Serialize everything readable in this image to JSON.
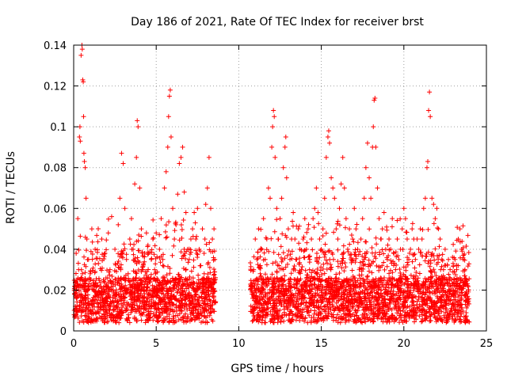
{
  "chart_data": {
    "type": "scatter",
    "title": "Day 186 of 2021, Rate Of TEC Index for receiver brst",
    "xlabel": "GPS time / hours",
    "ylabel": "ROTI / TECUs",
    "xlim": [
      0,
      25
    ],
    "ylim": [
      0,
      0.14
    ],
    "x_ticks": [
      "0",
      "5",
      "10",
      "15",
      "20",
      "25"
    ],
    "y_ticks": [
      "0",
      "0.02",
      "0.04",
      "0.06",
      "0.08",
      "0.1",
      "0.12",
      "0.14"
    ],
    "grid": true,
    "marker": "+",
    "color": "#ff0000",
    "data_gap": [
      8.6,
      10.7
    ],
    "series": [
      {
        "points": [
          [
            0.05,
            0.018
          ],
          [
            0.1,
            0.012
          ],
          [
            0.15,
            0.038
          ],
          [
            0.2,
            0.025
          ],
          [
            0.25,
            0.055
          ],
          [
            0.3,
            0.03
          ],
          [
            0.35,
            0.095
          ],
          [
            0.38,
            0.1
          ],
          [
            0.4,
            0.093
          ],
          [
            0.45,
            0.135
          ],
          [
            0.5,
            0.14
          ],
          [
            0.52,
            0.138
          ],
          [
            0.55,
            0.123
          ],
          [
            0.58,
            0.122
          ],
          [
            0.6,
            0.105
          ],
          [
            0.62,
            0.087
          ],
          [
            0.65,
            0.083
          ],
          [
            0.7,
            0.08
          ],
          [
            0.75,
            0.065
          ],
          [
            0.8,
            0.045
          ],
          [
            0.9,
            0.035
          ],
          [
            1.0,
            0.028
          ],
          [
            1.1,
            0.05
          ],
          [
            1.2,
            0.022
          ],
          [
            1.3,
            0.04
          ],
          [
            1.4,
            0.018
          ],
          [
            1.5,
            0.033
          ],
          [
            1.6,
            0.015
          ],
          [
            1.7,
            0.045
          ],
          [
            1.8,
            0.025
          ],
          [
            1.9,
            0.038
          ],
          [
            2.0,
            0.02
          ],
          [
            2.1,
            0.048
          ],
          [
            2.2,
            0.03
          ],
          [
            2.3,
            0.056
          ],
          [
            2.4,
            0.024
          ],
          [
            2.5,
            0.04
          ],
          [
            2.6,
            0.018
          ],
          [
            2.7,
            0.052
          ],
          [
            2.8,
            0.065
          ],
          [
            2.9,
            0.087
          ],
          [
            3.0,
            0.082
          ],
          [
            3.1,
            0.06
          ],
          [
            3.2,
            0.035
          ],
          [
            3.3,
            0.028
          ],
          [
            3.4,
            0.045
          ],
          [
            3.5,
            0.055
          ],
          [
            3.6,
            0.04
          ],
          [
            3.7,
            0.072
          ],
          [
            3.8,
            0.085
          ],
          [
            3.85,
            0.103
          ],
          [
            3.9,
            0.1
          ],
          [
            4.0,
            0.07
          ],
          [
            4.1,
            0.05
          ],
          [
            4.2,
            0.03
          ],
          [
            4.3,
            0.038
          ],
          [
            4.4,
            0.025
          ],
          [
            4.5,
            0.042
          ],
          [
            4.6,
            0.02
          ],
          [
            4.7,
            0.035
          ],
          [
            4.8,
            0.045
          ],
          [
            4.9,
            0.03
          ],
          [
            5.0,
            0.048
          ],
          [
            5.1,
            0.025
          ],
          [
            5.2,
            0.04
          ],
          [
            5.3,
            0.055
          ],
          [
            5.4,
            0.035
          ],
          [
            5.5,
            0.07
          ],
          [
            5.6,
            0.078
          ],
          [
            5.7,
            0.09
          ],
          [
            5.75,
            0.105
          ],
          [
            5.8,
            0.115
          ],
          [
            5.85,
            0.118
          ],
          [
            5.9,
            0.095
          ],
          [
            6.0,
            0.06
          ],
          [
            6.1,
            0.045
          ],
          [
            6.2,
            0.052
          ],
          [
            6.3,
            0.067
          ],
          [
            6.4,
            0.082
          ],
          [
            6.5,
            0.085
          ],
          [
            6.6,
            0.09
          ],
          [
            6.7,
            0.068
          ],
          [
            6.8,
            0.058
          ],
          [
            6.9,
            0.04
          ],
          [
            7.0,
            0.035
          ],
          [
            7.1,
            0.045
          ],
          [
            7.2,
            0.05
          ],
          [
            7.3,
            0.058
          ],
          [
            7.4,
            0.045
          ],
          [
            7.5,
            0.06
          ],
          [
            7.6,
            0.04
          ],
          [
            7.7,
            0.032
          ],
          [
            7.8,
            0.05
          ],
          [
            7.9,
            0.038
          ],
          [
            8.0,
            0.062
          ],
          [
            8.1,
            0.07
          ],
          [
            8.2,
            0.085
          ],
          [
            8.3,
            0.06
          ],
          [
            8.4,
            0.045
          ],
          [
            8.5,
            0.05
          ],
          [
            8.55,
            0.035
          ],
          [
            10.8,
            0.018
          ],
          [
            10.9,
            0.03
          ],
          [
            11.0,
            0.045
          ],
          [
            11.1,
            0.035
          ],
          [
            11.2,
            0.05
          ],
          [
            11.3,
            0.028
          ],
          [
            11.4,
            0.04
          ],
          [
            11.5,
            0.055
          ],
          [
            11.6,
            0.035
          ],
          [
            11.7,
            0.045
          ],
          [
            11.8,
            0.07
          ],
          [
            11.9,
            0.065
          ],
          [
            12.0,
            0.09
          ],
          [
            12.05,
            0.1
          ],
          [
            12.1,
            0.108
          ],
          [
            12.15,
            0.105
          ],
          [
            12.2,
            0.085
          ],
          [
            12.3,
            0.06
          ],
          [
            12.4,
            0.045
          ],
          [
            12.5,
            0.055
          ],
          [
            12.6,
            0.065
          ],
          [
            12.7,
            0.08
          ],
          [
            12.8,
            0.09
          ],
          [
            12.85,
            0.095
          ],
          [
            12.9,
            0.075
          ],
          [
            13.0,
            0.05
          ],
          [
            13.1,
            0.035
          ],
          [
            13.2,
            0.045
          ],
          [
            13.3,
            0.058
          ],
          [
            13.4,
            0.045
          ],
          [
            13.5,
            0.035
          ],
          [
            13.6,
            0.05
          ],
          [
            13.7,
            0.04
          ],
          [
            13.8,
            0.03
          ],
          [
            13.9,
            0.045
          ],
          [
            14.0,
            0.055
          ],
          [
            14.1,
            0.04
          ],
          [
            14.2,
            0.05
          ],
          [
            14.3,
            0.035
          ],
          [
            14.4,
            0.045
          ],
          [
            14.5,
            0.055
          ],
          [
            14.6,
            0.06
          ],
          [
            14.7,
            0.07
          ],
          [
            14.8,
            0.058
          ],
          [
            14.9,
            0.045
          ],
          [
            15.0,
            0.04
          ],
          [
            15.1,
            0.05
          ],
          [
            15.2,
            0.065
          ],
          [
            15.3,
            0.085
          ],
          [
            15.4,
            0.095
          ],
          [
            15.45,
            0.098
          ],
          [
            15.5,
            0.092
          ],
          [
            15.6,
            0.075
          ],
          [
            15.7,
            0.07
          ],
          [
            15.8,
            0.065
          ],
          [
            15.9,
            0.05
          ],
          [
            16.0,
            0.045
          ],
          [
            16.1,
            0.06
          ],
          [
            16.2,
            0.072
          ],
          [
            16.3,
            0.085
          ],
          [
            16.4,
            0.07
          ],
          [
            16.5,
            0.055
          ],
          [
            16.6,
            0.04
          ],
          [
            16.7,
            0.05
          ],
          [
            16.8,
            0.035
          ],
          [
            16.9,
            0.045
          ],
          [
            17.0,
            0.06
          ],
          [
            17.1,
            0.05
          ],
          [
            17.2,
            0.04
          ],
          [
            17.3,
            0.03
          ],
          [
            17.4,
            0.045
          ],
          [
            17.5,
            0.055
          ],
          [
            17.6,
            0.065
          ],
          [
            17.7,
            0.08
          ],
          [
            17.8,
            0.092
          ],
          [
            17.9,
            0.075
          ],
          [
            18.0,
            0.065
          ],
          [
            18.1,
            0.09
          ],
          [
            18.15,
            0.1
          ],
          [
            18.2,
            0.113
          ],
          [
            18.25,
            0.114
          ],
          [
            18.3,
            0.09
          ],
          [
            18.4,
            0.07
          ],
          [
            18.5,
            0.055
          ],
          [
            18.6,
            0.045
          ],
          [
            18.7,
            0.05
          ],
          [
            18.8,
            0.058
          ],
          [
            18.9,
            0.04
          ],
          [
            19.0,
            0.035
          ],
          [
            19.1,
            0.045
          ],
          [
            19.2,
            0.04
          ],
          [
            19.3,
            0.055
          ],
          [
            19.4,
            0.038
          ],
          [
            19.5,
            0.03
          ],
          [
            19.6,
            0.045
          ],
          [
            19.7,
            0.035
          ],
          [
            19.8,
            0.04
          ],
          [
            19.9,
            0.05
          ],
          [
            20.0,
            0.06
          ],
          [
            20.1,
            0.055
          ],
          [
            20.2,
            0.045
          ],
          [
            20.3,
            0.035
          ],
          [
            20.4,
            0.04
          ],
          [
            20.5,
            0.05
          ],
          [
            20.6,
            0.045
          ],
          [
            20.7,
            0.035
          ],
          [
            20.8,
            0.045
          ],
          [
            20.9,
            0.04
          ],
          [
            21.0,
            0.05
          ],
          [
            21.1,
            0.045
          ],
          [
            21.2,
            0.06
          ],
          [
            21.3,
            0.065
          ],
          [
            21.4,
            0.08
          ],
          [
            21.45,
            0.083
          ],
          [
            21.5,
            0.108
          ],
          [
            21.55,
            0.117
          ],
          [
            21.6,
            0.105
          ],
          [
            21.7,
            0.065
          ],
          [
            21.8,
            0.062
          ],
          [
            21.9,
            0.055
          ],
          [
            22.0,
            0.06
          ],
          [
            22.1,
            0.05
          ],
          [
            22.2,
            0.045
          ],
          [
            22.3,
            0.035
          ],
          [
            22.4,
            0.03
          ],
          [
            22.5,
            0.04
          ],
          [
            22.6,
            0.025
          ],
          [
            22.7,
            0.035
          ],
          [
            22.8,
            0.03
          ],
          [
            22.9,
            0.025
          ],
          [
            23.0,
            0.02
          ],
          [
            23.1,
            0.035
          ],
          [
            23.2,
            0.03
          ],
          [
            23.3,
            0.045
          ],
          [
            23.4,
            0.05
          ],
          [
            23.5,
            0.04
          ],
          [
            23.6,
            0.035
          ],
          [
            23.7,
            0.03
          ],
          [
            23.8,
            0.025
          ],
          [
            23.9,
            0.02
          ]
        ]
      }
    ]
  }
}
